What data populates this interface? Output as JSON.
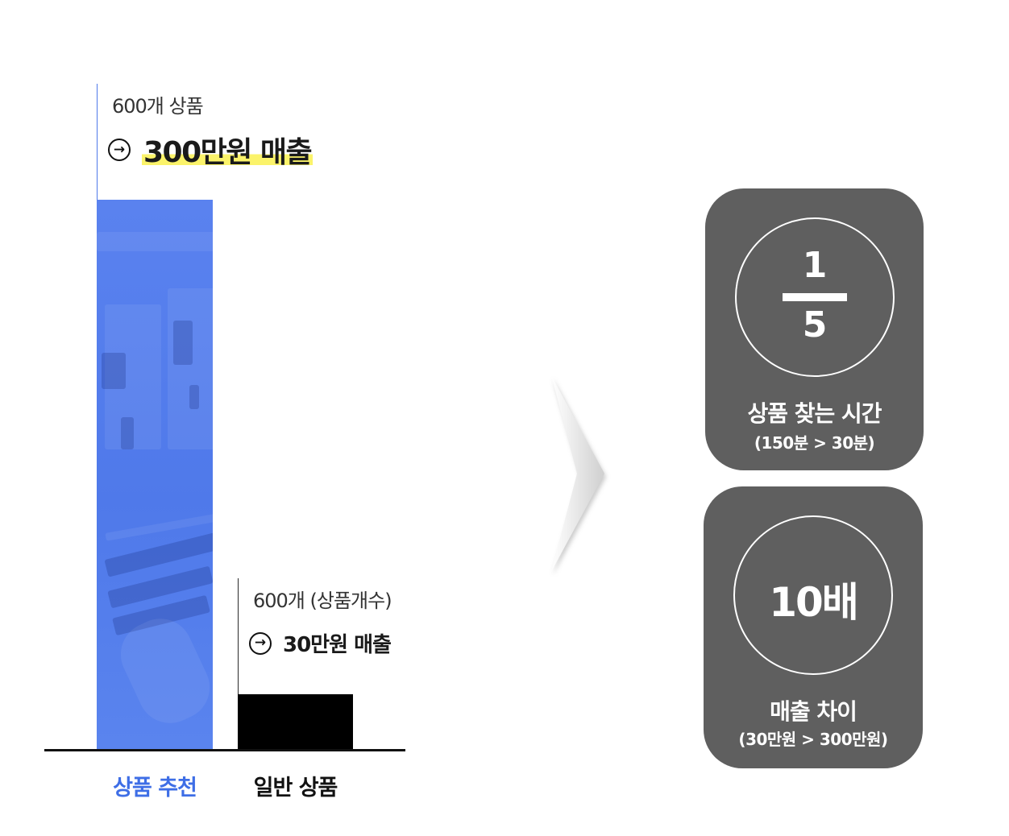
{
  "chart_data": {
    "type": "bar",
    "categories": [
      "상품 추천",
      "일반 상품"
    ],
    "values": [
      300,
      30
    ],
    "ylim": [
      0,
      330
    ],
    "annotations": [
      {
        "count": "600개 상품",
        "sales": "300만원 매출"
      },
      {
        "count": "600개 (상품개수)",
        "sales": "30만원 매출"
      }
    ],
    "colors": [
      "#4f79ea",
      "#000000"
    ],
    "label_colors": [
      "#3e6ee6",
      "#111111"
    ],
    "grid": false,
    "legend": "none"
  },
  "cards": [
    {
      "fraction": {
        "numerator": "1",
        "denominator": "5"
      },
      "title": "상품 찾는 시간",
      "subtitle": "(150분 > 30분)"
    },
    {
      "big": "10배",
      "title": "매출 차이",
      "subtitle": "(30만원 > 300만원)"
    }
  ],
  "icons": {
    "annotation_arrow": "arrow-right-circle-icon",
    "transition": "chevron-right-icon"
  },
  "colors": {
    "card_bg": "#5f5f5f",
    "highlight": "#fbf36a"
  }
}
